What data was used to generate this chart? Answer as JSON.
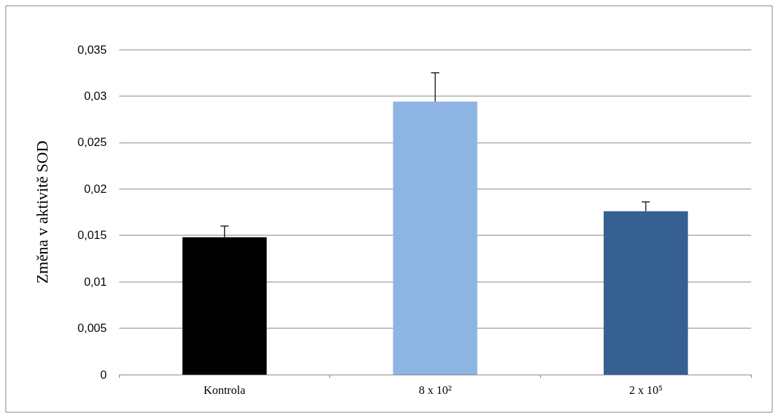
{
  "chart_data": {
    "type": "bar",
    "ylabel": "Změna v aktivitě SOD",
    "categories": [
      "Kontrola",
      "8 x 10²",
      "2 x 10⁵"
    ],
    "values": [
      0.0148,
      0.0294,
      0.0176
    ],
    "colors": [
      "#000000",
      "#8eb4e3",
      "#376092"
    ],
    "errors": [
      [
        0.0148,
        0.016
      ],
      [
        0.0294,
        0.0325
      ],
      [
        0.0176,
        0.0186
      ]
    ],
    "ylim": [
      0,
      0.035
    ],
    "yticks": [
      {
        "value": 0,
        "label": "0"
      },
      {
        "value": 0.005,
        "label": "0,005"
      },
      {
        "value": 0.01,
        "label": "0,01"
      },
      {
        "value": 0.015,
        "label": "0,015"
      },
      {
        "value": 0.02,
        "label": "0,02"
      },
      {
        "value": 0.025,
        "label": "0,025"
      },
      {
        "value": 0.03,
        "label": "0,03"
      },
      {
        "value": 0.035,
        "label": "0,035"
      }
    ],
    "grid": "y"
  }
}
